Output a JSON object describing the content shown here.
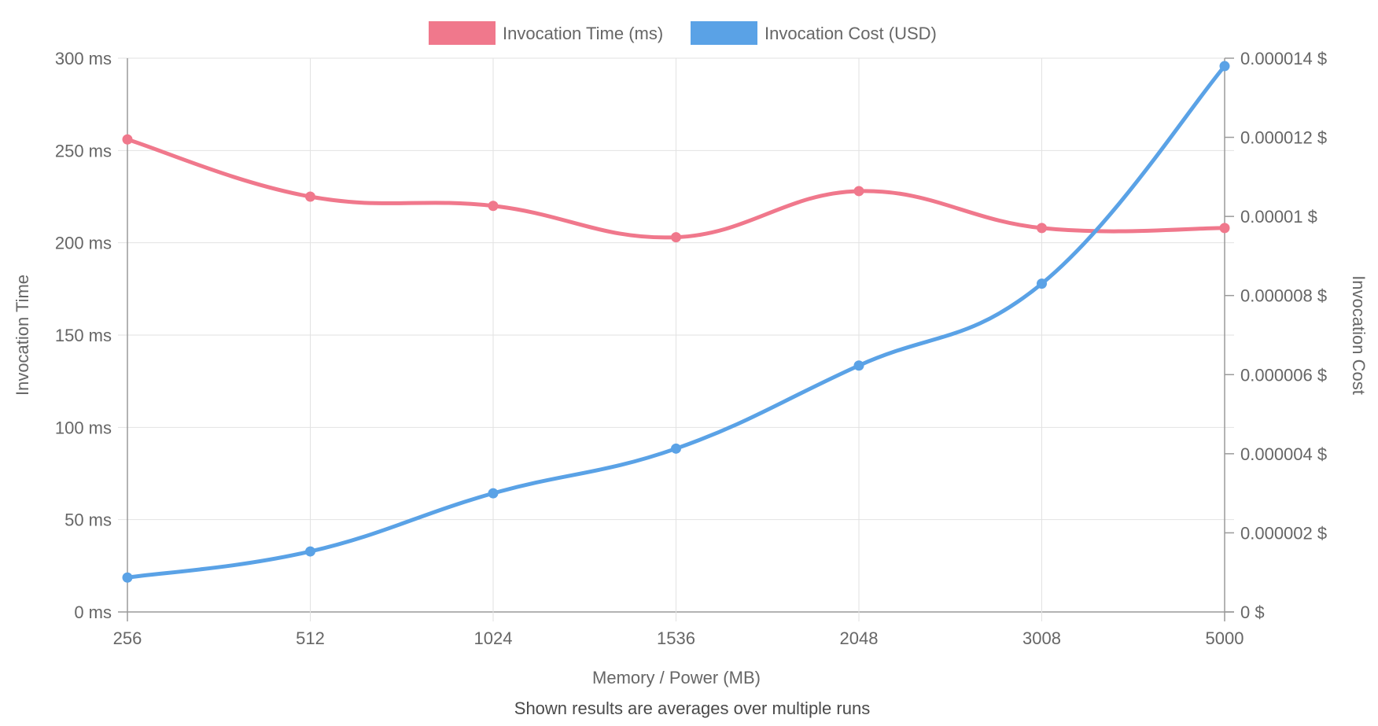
{
  "chart_data": {
    "type": "line",
    "categories": [
      "256",
      "512",
      "1024",
      "1536",
      "2048",
      "3008",
      "5000"
    ],
    "series": [
      {
        "name": "Invocation Time (ms)",
        "axis": "left",
        "color": "#f0788c",
        "values": [
          256,
          225,
          220,
          203,
          228,
          208,
          208
        ]
      },
      {
        "name": "Invocation Cost (USD)",
        "axis": "right",
        "color": "#5aa2e6",
        "values": [
          8.7e-07,
          1.53e-06,
          3e-06,
          4.13e-06,
          6.23e-06,
          8.3e-06,
          1.38e-05
        ]
      }
    ],
    "y_left": {
      "label": "Invocation Time",
      "range": [
        0,
        300
      ],
      "ticks": [
        0,
        50,
        100,
        150,
        200,
        250,
        300
      ],
      "tick_labels": [
        "0 ms",
        "50 ms",
        "100 ms",
        "150 ms",
        "200 ms",
        "250 ms",
        "300 ms"
      ]
    },
    "y_right": {
      "label": "Invocation Cost",
      "range": [
        0,
        1.4e-05
      ],
      "ticks": [
        0,
        2e-06,
        4e-06,
        6e-06,
        8e-06,
        1e-05,
        1.2e-05,
        1.4e-05
      ],
      "tick_labels": [
        "0 $",
        "0.000002 $",
        "0.000004 $",
        "0.000006 $",
        "0.000008 $",
        "0.00001 $",
        "0.000012 $",
        "0.000014 $"
      ]
    },
    "xlabel": "Memory / Power (MB)",
    "footer": "Shown results are averages over multiple runs",
    "legend_position": "top-center",
    "grid": true
  }
}
